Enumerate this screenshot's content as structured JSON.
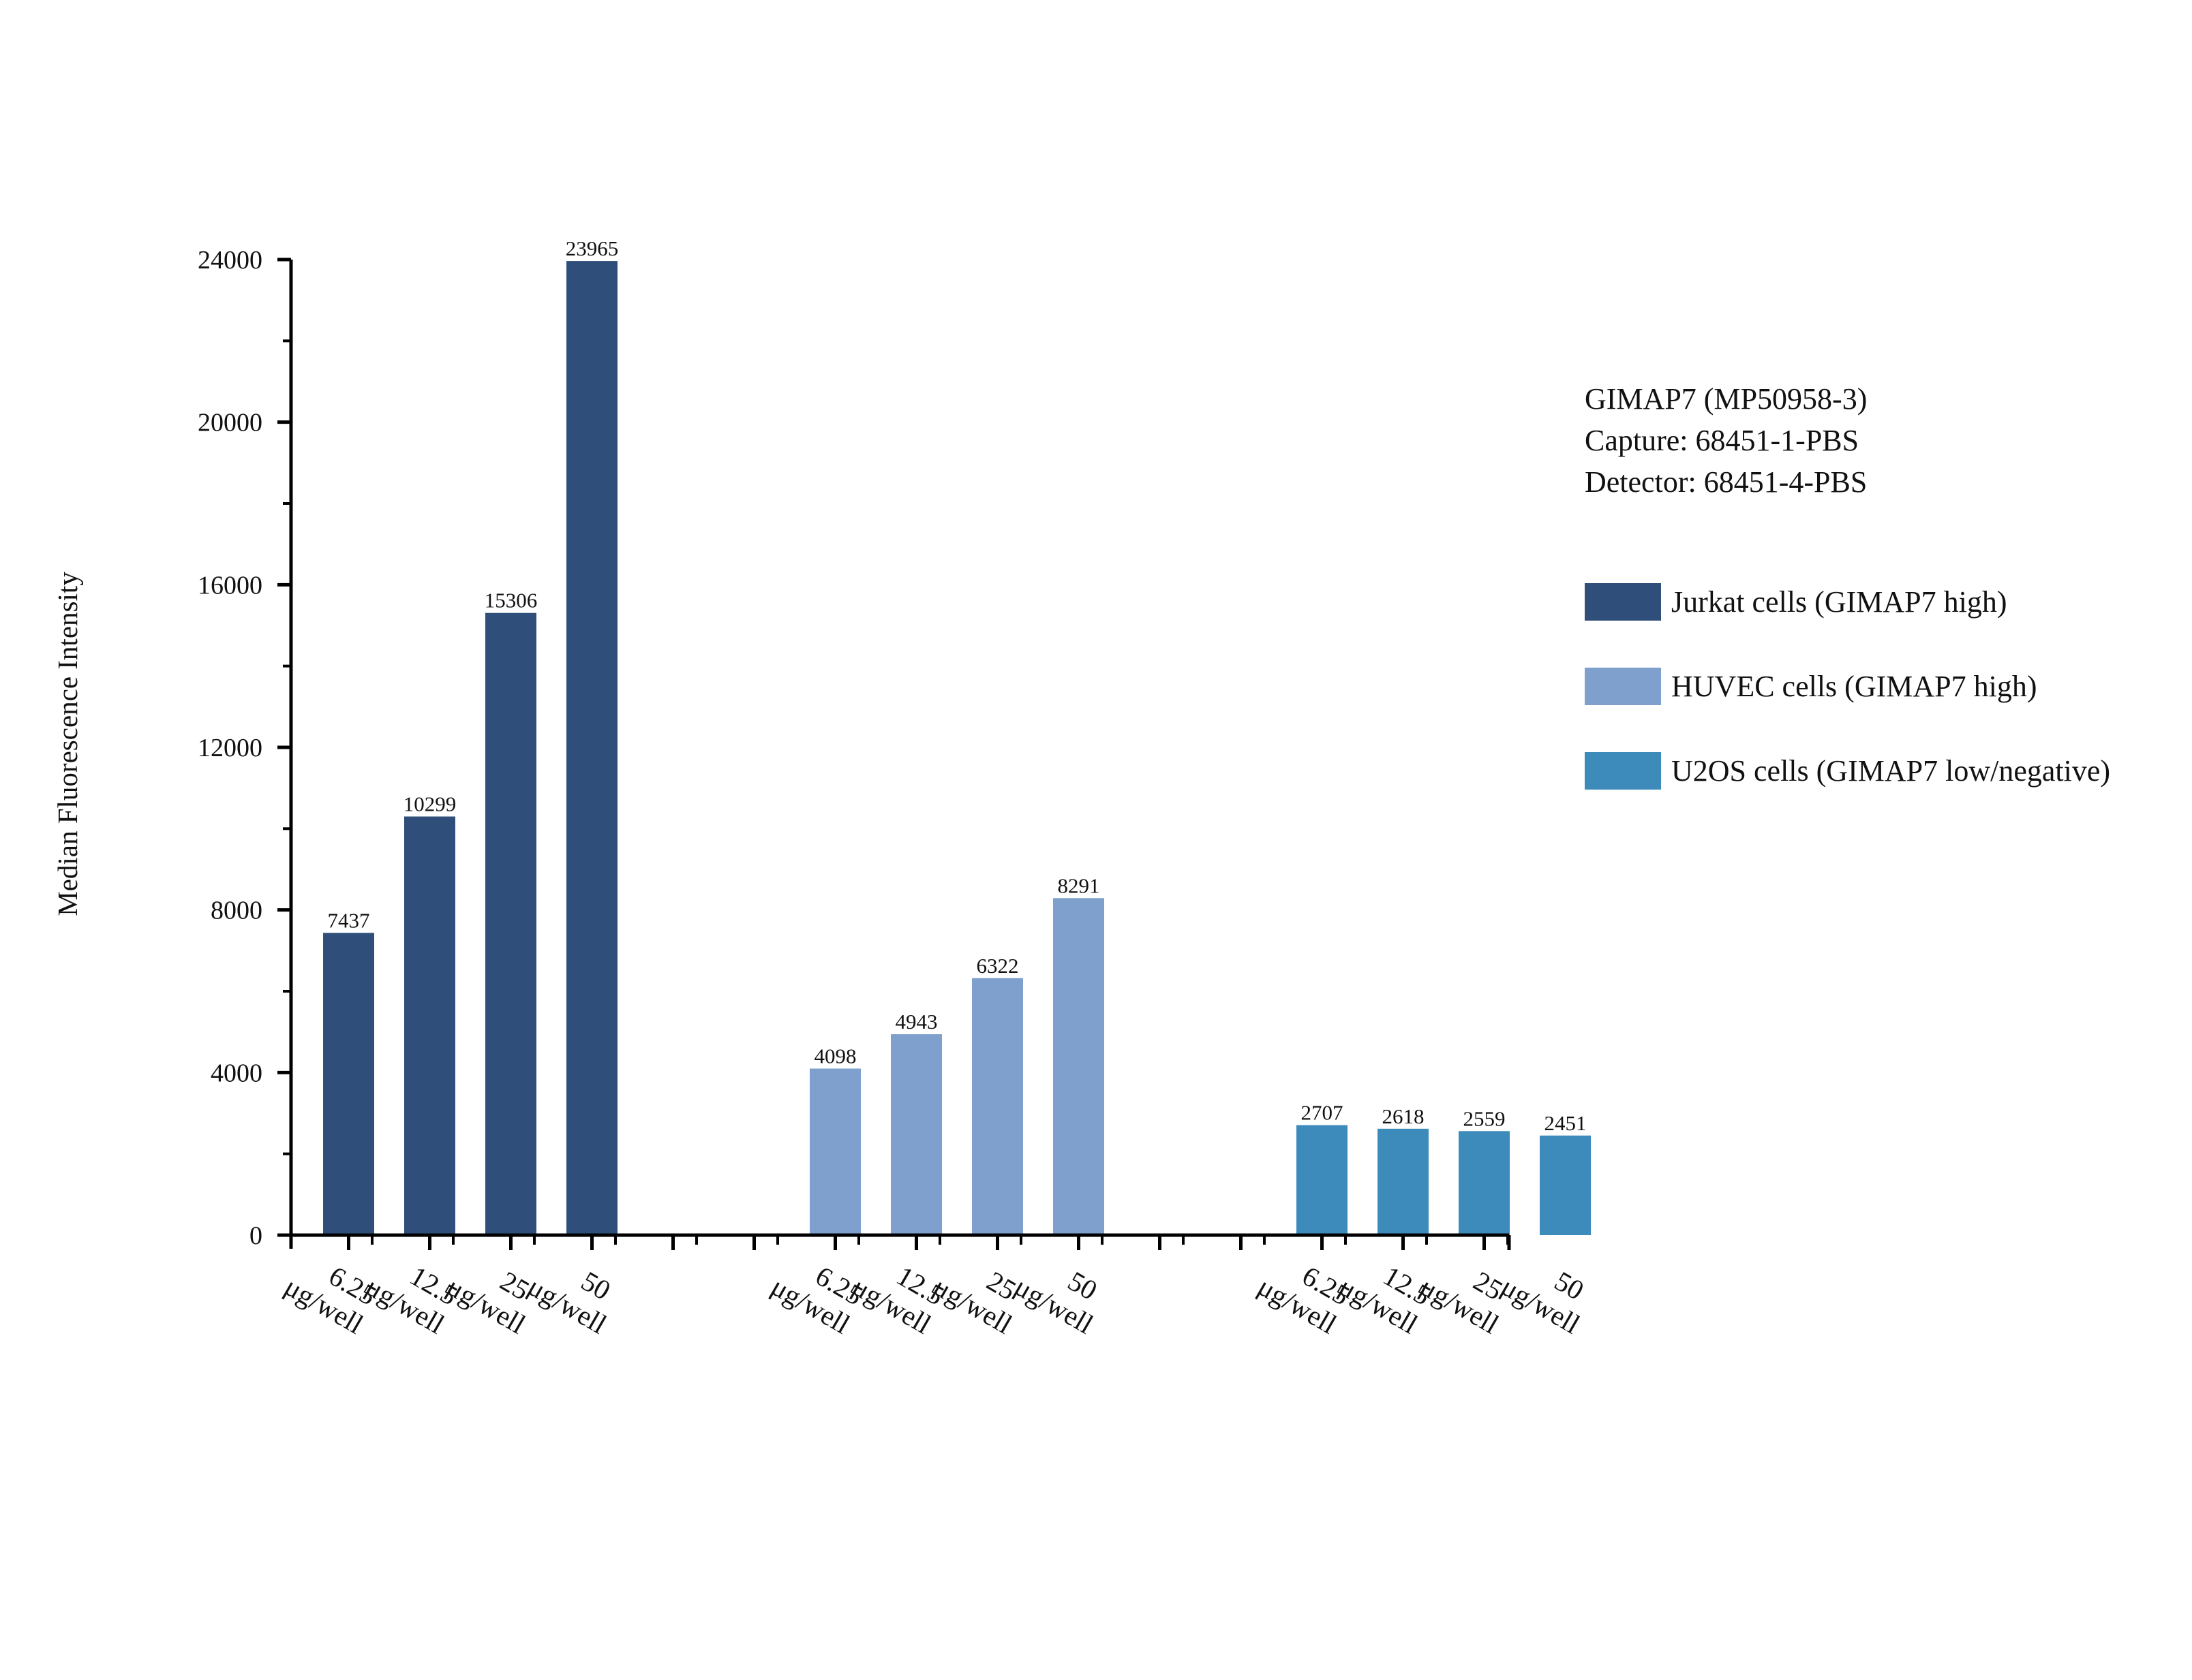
{
  "chart_data": {
    "type": "bar",
    "title": "",
    "xlabel": "",
    "ylabel": "Median Fluorescence Intensity",
    "ylim": [
      0,
      24000
    ],
    "yticks": [
      "0",
      "4000",
      "8000",
      "12000",
      "16000",
      "20000",
      "24000"
    ],
    "grid": false,
    "legend_position": "right",
    "info_lines": [
      "GIMAP7 (MP50958-3)",
      "Capture: 68451-1-PBS",
      "Detector: 68451-4-PBS"
    ],
    "groups": [
      {
        "name": "Jurkat cells (GIMAP7 high)",
        "color": "#2f4f7a",
        "categories": [
          [
            "6.25",
            "μg/well"
          ],
          [
            "12.5",
            "μg/well"
          ],
          [
            "25",
            "μg/well"
          ],
          [
            "50",
            "μg/well"
          ]
        ],
        "values": [
          7437,
          10299,
          15306,
          23965
        ],
        "value_labels": [
          "7437",
          "10299",
          "15306",
          "23965"
        ]
      },
      {
        "name": "HUVEC cells (GIMAP7 high)",
        "color": "#7f9fcc",
        "categories": [
          [
            "6.25",
            "μg/well"
          ],
          [
            "12.5",
            "μg/well"
          ],
          [
            "25",
            "μg/well"
          ],
          [
            "50",
            "μg/well"
          ]
        ],
        "values": [
          4098,
          4943,
          6322,
          8291
        ],
        "value_labels": [
          "4098",
          "4943",
          "6322",
          "8291"
        ]
      },
      {
        "name": "U2OS cells (GIMAP7 low/negative)",
        "color": "#3d8bbb",
        "categories": [
          [
            "6.25",
            "μg/well"
          ],
          [
            "12.5",
            "μg/well"
          ],
          [
            "25",
            "μg/well"
          ],
          [
            "50",
            "μg/well"
          ]
        ],
        "values": [
          2707,
          2618,
          2559,
          2451
        ],
        "value_labels": [
          "2707",
          "2618",
          "2559",
          "2451"
        ]
      }
    ]
  }
}
